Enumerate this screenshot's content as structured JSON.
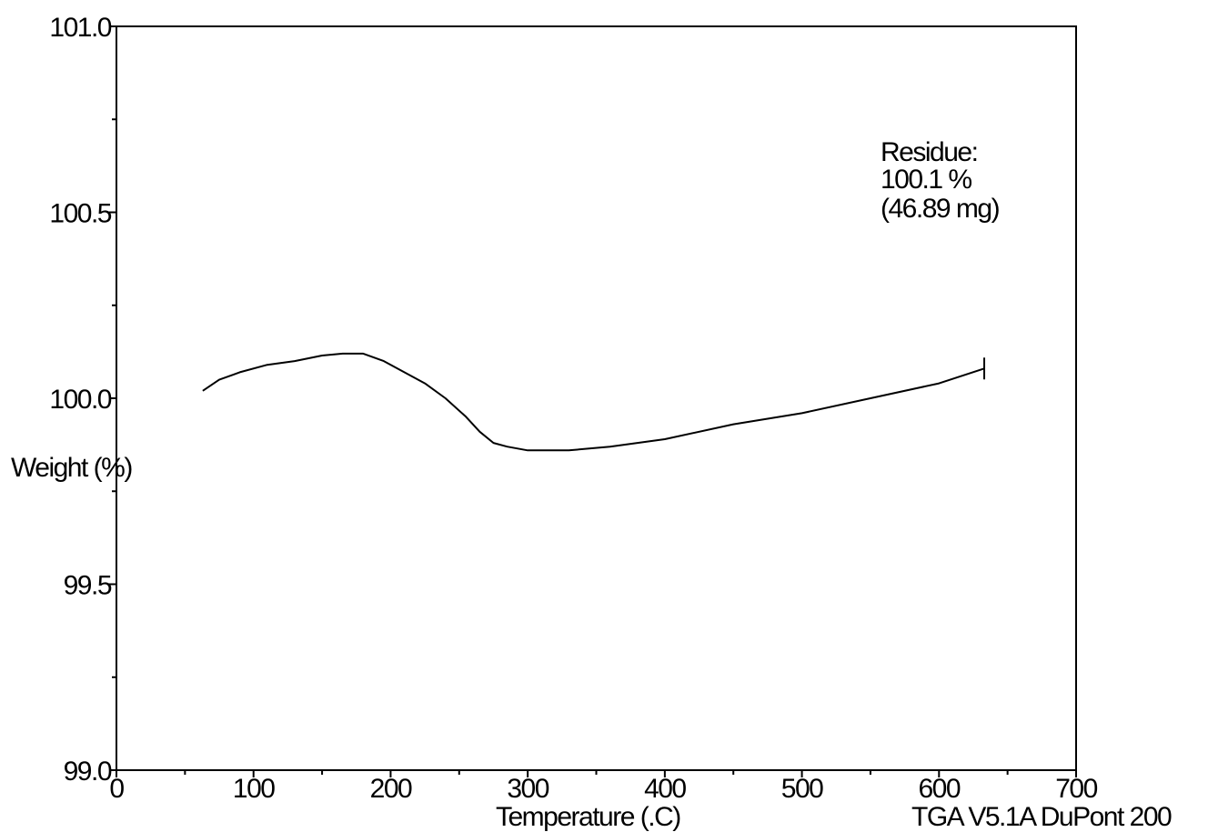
{
  "chart_data": {
    "type": "line",
    "xlabel": "Temperature (.C)",
    "ylabel": "Weight (%)",
    "xlim": [
      0,
      700
    ],
    "ylim": [
      99.0,
      101.0
    ],
    "x_ticks": [
      "0",
      "100",
      "200",
      "300",
      "400",
      "500",
      "600",
      "700"
    ],
    "y_ticks": [
      "99.0",
      "99.5",
      "100.0",
      "100.5",
      "101.0"
    ],
    "grid": false,
    "series": [
      {
        "color": "#000000",
        "x": [
          63,
          75,
          90,
          110,
          130,
          150,
          165,
          180,
          195,
          210,
          225,
          240,
          255,
          265,
          275,
          285,
          300,
          330,
          360,
          400,
          450,
          500,
          550,
          600,
          633
        ],
        "y": [
          100.02,
          100.05,
          100.07,
          100.09,
          100.1,
          100.115,
          100.12,
          100.12,
          100.1,
          100.07,
          100.04,
          100.0,
          99.95,
          99.91,
          99.88,
          99.87,
          99.86,
          99.86,
          99.87,
          99.89,
          99.93,
          99.96,
          100.0,
          100.04,
          100.08
        ]
      }
    ],
    "annotations": [
      {
        "lines": [
          "Residue:",
          "100.1 %",
          "(46.89 mg)"
        ]
      }
    ],
    "footer": "TGA V5.1A DuPont 200"
  }
}
